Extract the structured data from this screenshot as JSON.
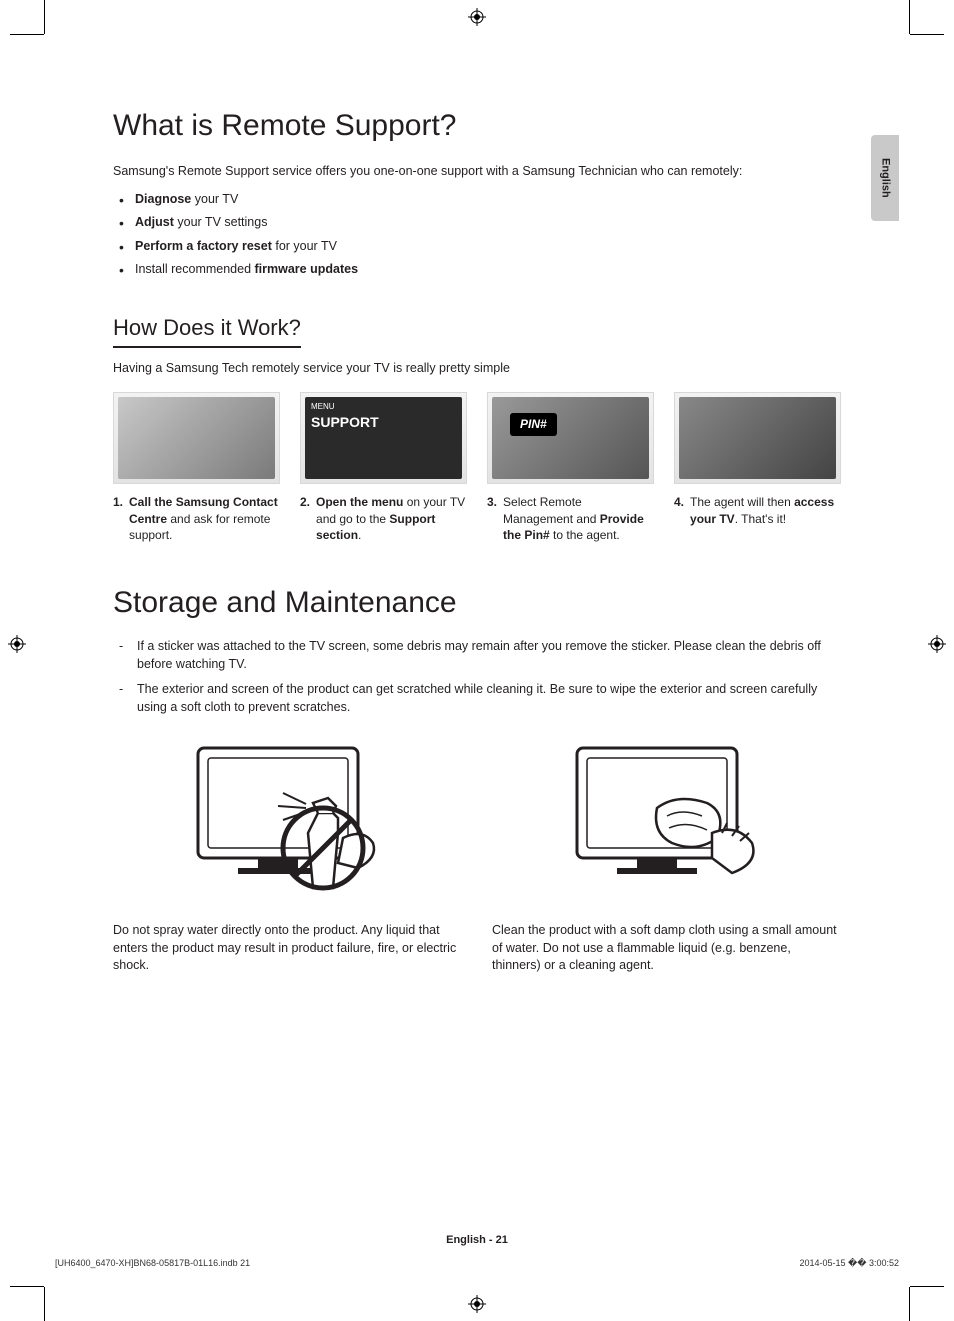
{
  "page": {
    "lang_tab": "English",
    "footer_page": "English - 21",
    "footer_file": "[UH6400_6470-XH]BN68-05817B-01L16.indb   21",
    "footer_date": "2014-05-15   �� 3:00:52"
  },
  "section1": {
    "title": "What is Remote Support?",
    "intro": "Samsung's Remote Support service offers you one-on-one support with a Samsung Technician who can remotely:",
    "bullets": [
      {
        "bold": "Diagnose",
        "rest": " your TV"
      },
      {
        "bold": "Adjust",
        "rest": " your TV settings"
      },
      {
        "bold": "Perform a factory reset",
        "rest": " for your TV"
      },
      {
        "prefix": "Install recommended ",
        "bold": "firmware updates",
        "rest": ""
      }
    ],
    "sub_title": "How Does it Work?",
    "sub_intro": "Having a Samsung Tech remotely service your TV is really pretty simple",
    "steps": [
      {
        "num": "1.",
        "html": "<b>Call the Samsung Contact Centre</b> and ask for remote support."
      },
      {
        "num": "2.",
        "html": "<b>Open the menu</b> on your TV and go to the <b>Support section</b>."
      },
      {
        "num": "3.",
        "html": "Select Remote Management and <b>Provide the Pin#</b> to the agent."
      },
      {
        "num": "4.",
        "html": "The agent will then <b>access your TV</b>. That's it!"
      }
    ],
    "step2_menu_label": "MENU",
    "step2_support_label": "SUPPORT",
    "step3_pin_label": "PIN#"
  },
  "section2": {
    "title": "Storage and Maintenance",
    "notes": [
      "If a sticker was attached to the TV screen, some debris may remain after you remove the sticker. Please clean the debris off before watching TV.",
      "The exterior and screen of the product can get scratched while cleaning it. Be sure to wipe the exterior and screen carefully using a soft cloth to prevent scratches."
    ],
    "left_caption": "Do not spray water directly onto the product. Any liquid that enters the product may result in product failure, fire, or electric shock.",
    "right_caption": "Clean the product with a soft damp cloth using a small amount of water. Do not use a flammable liquid (e.g. benzene, thinners) or a cleaning agent."
  },
  "styling": {
    "text_color": "#231f20",
    "tab_bg": "#c9c9c9",
    "h1_fontsize": 30,
    "h3_fontsize": 22,
    "body_fontsize": 12.5,
    "step_img_border": "#d8d8d8"
  }
}
